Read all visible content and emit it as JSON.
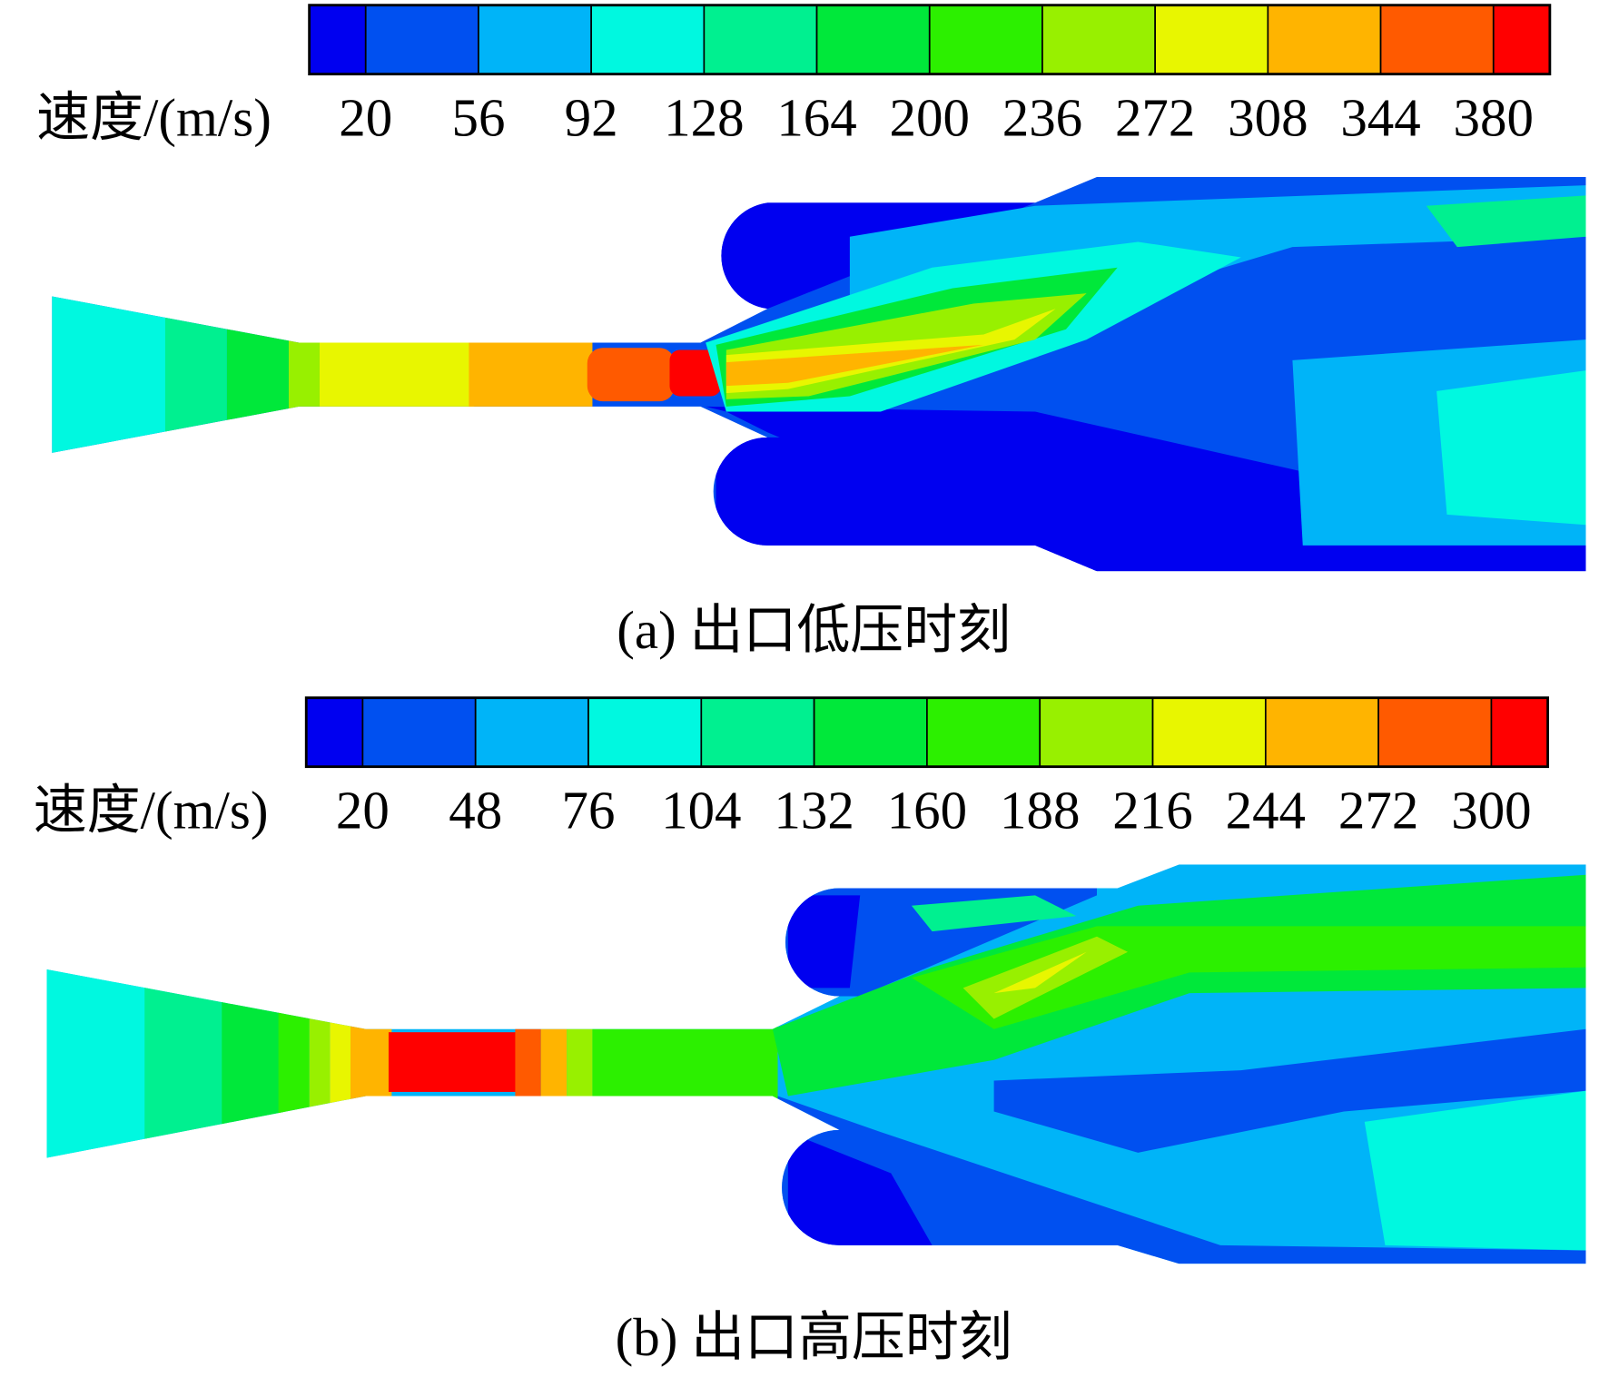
{
  "colors": [
    "#0000f0",
    "#0050f0",
    "#00b4f8",
    "#00f8e0",
    "#00f090",
    "#00e83a",
    "#2cf000",
    "#98f000",
    "#e8f600",
    "#ffb400",
    "#ff5a00",
    "#ff0000"
  ],
  "panels": [
    {
      "colorbar": {
        "label": "速度/(m/s)",
        "ticks": [
          20,
          56,
          92,
          128,
          164,
          200,
          236,
          272,
          308,
          344,
          380
        ]
      },
      "caption": "(a) 出口低压时刻"
    },
    {
      "colorbar": {
        "label": "速度/(m/s)",
        "ticks": [
          20,
          48,
          76,
          104,
          132,
          160,
          188,
          216,
          244,
          272,
          300
        ]
      },
      "caption": "(b) 出口高压时刻"
    }
  ]
}
